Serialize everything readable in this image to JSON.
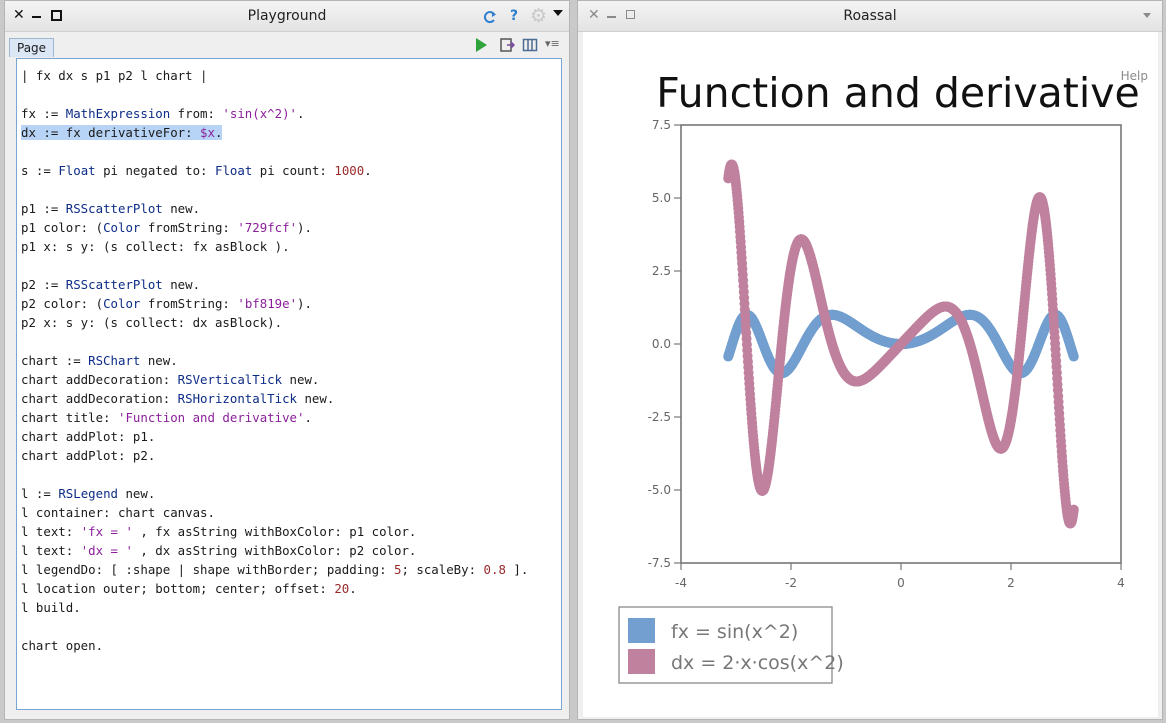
{
  "playground": {
    "title": "Playground",
    "tab": "Page",
    "code_lines": [
      [
        {
          "t": "| fx dx s p1 p2 l chart |"
        }
      ],
      [],
      [
        {
          "t": "fx := "
        },
        {
          "t": "MathExpression",
          "c": "kw-glob"
        },
        {
          "t": " from: "
        },
        {
          "t": "'sin(x^2)'",
          "c": "kw-str"
        },
        {
          "t": "."
        }
      ],
      [
        {
          "t": "dx := fx derivativeFor: ",
          "sel": true
        },
        {
          "t": "$x",
          "c": "kw-sym",
          "sel": true
        },
        {
          "t": ".",
          "sel": true
        }
      ],
      [],
      [
        {
          "t": "s := "
        },
        {
          "t": "Float",
          "c": "kw-glob"
        },
        {
          "t": " pi negated to: "
        },
        {
          "t": "Float",
          "c": "kw-glob"
        },
        {
          "t": " pi count: "
        },
        {
          "t": "1000",
          "c": "kw-num"
        },
        {
          "t": "."
        }
      ],
      [],
      [
        {
          "t": "p1 := "
        },
        {
          "t": "RSScatterPlot",
          "c": "kw-glob"
        },
        {
          "t": " new."
        }
      ],
      [
        {
          "t": "p1 color: ("
        },
        {
          "t": "Color",
          "c": "kw-glob"
        },
        {
          "t": " fromString: "
        },
        {
          "t": "'729fcf'",
          "c": "kw-str"
        },
        {
          "t": ")."
        }
      ],
      [
        {
          "t": "p1 x: s y: (s collect: fx asBlock )."
        }
      ],
      [],
      [
        {
          "t": "p2 := "
        },
        {
          "t": "RSScatterPlot",
          "c": "kw-glob"
        },
        {
          "t": " new."
        }
      ],
      [
        {
          "t": "p2 color: ("
        },
        {
          "t": "Color",
          "c": "kw-glob"
        },
        {
          "t": " fromString: "
        },
        {
          "t": "'bf819e'",
          "c": "kw-str"
        },
        {
          "t": ")."
        }
      ],
      [
        {
          "t": "p2 x: s y: (s collect: dx asBlock)."
        }
      ],
      [],
      [
        {
          "t": "chart := "
        },
        {
          "t": "RSChart",
          "c": "kw-glob"
        },
        {
          "t": " new."
        }
      ],
      [
        {
          "t": "chart addDecoration: "
        },
        {
          "t": "RSVerticalTick",
          "c": "kw-glob"
        },
        {
          "t": " new."
        }
      ],
      [
        {
          "t": "chart addDecoration: "
        },
        {
          "t": "RSHorizontalTick",
          "c": "kw-glob"
        },
        {
          "t": " new."
        }
      ],
      [
        {
          "t": "chart title: "
        },
        {
          "t": "'Function and derivative'",
          "c": "kw-str"
        },
        {
          "t": "."
        }
      ],
      [
        {
          "t": "chart addPlot: p1."
        }
      ],
      [
        {
          "t": "chart addPlot: p2."
        }
      ],
      [],
      [
        {
          "t": "l := "
        },
        {
          "t": "RSLegend",
          "c": "kw-glob"
        },
        {
          "t": " new."
        }
      ],
      [
        {
          "t": "l container: chart canvas."
        }
      ],
      [
        {
          "t": "l text: "
        },
        {
          "t": "'fx = '",
          "c": "kw-str"
        },
        {
          "t": " , fx asString withBoxColor: p1 color."
        }
      ],
      [
        {
          "t": "l text: "
        },
        {
          "t": "'dx = '",
          "c": "kw-str"
        },
        {
          "t": " , dx asString withBoxColor: p2 color."
        }
      ],
      [
        {
          "t": "l legendDo: [ :shape | shape withBorder; padding: "
        },
        {
          "t": "5",
          "c": "kw-num"
        },
        {
          "t": "; scaleBy: "
        },
        {
          "t": "0.8",
          "c": "kw-num"
        },
        {
          "t": " ]."
        }
      ],
      [
        {
          "t": "l location outer; bottom; center; offset: "
        },
        {
          "t": "20",
          "c": "kw-num"
        },
        {
          "t": "."
        }
      ],
      [
        {
          "t": "l build."
        }
      ],
      [],
      [
        {
          "t": "chart open."
        }
      ]
    ]
  },
  "roassal": {
    "title": "Roassal",
    "help": "Help"
  },
  "chart_data": {
    "type": "scatter",
    "title": "Function and derivative",
    "xlabel": "",
    "ylabel": "",
    "xlim": [
      -4,
      4
    ],
    "ylim": [
      -7.5,
      7.5
    ],
    "x_ticks": [
      -4,
      -2,
      0,
      2,
      4
    ],
    "y_ticks": [
      7.5,
      5.0,
      2.5,
      0.0,
      -2.5,
      -5.0,
      -7.5
    ],
    "x_domain": [
      -3.14159,
      3.14159
    ],
    "count": 1000,
    "series": [
      {
        "name": "fx = sin(x^2)",
        "color": "#729fcf",
        "expression": "sin(x^2)"
      },
      {
        "name": "dx = 2·x·cos(x^2)",
        "color": "#bf819e",
        "expression": "2·x·cos(x^2)"
      }
    ],
    "legend_placement": "bottom-left",
    "grid": false
  },
  "colors": {
    "selection": "#b7d3f5",
    "run_green": "#2fa33c",
    "refresh_blue": "#2e7fd0"
  }
}
